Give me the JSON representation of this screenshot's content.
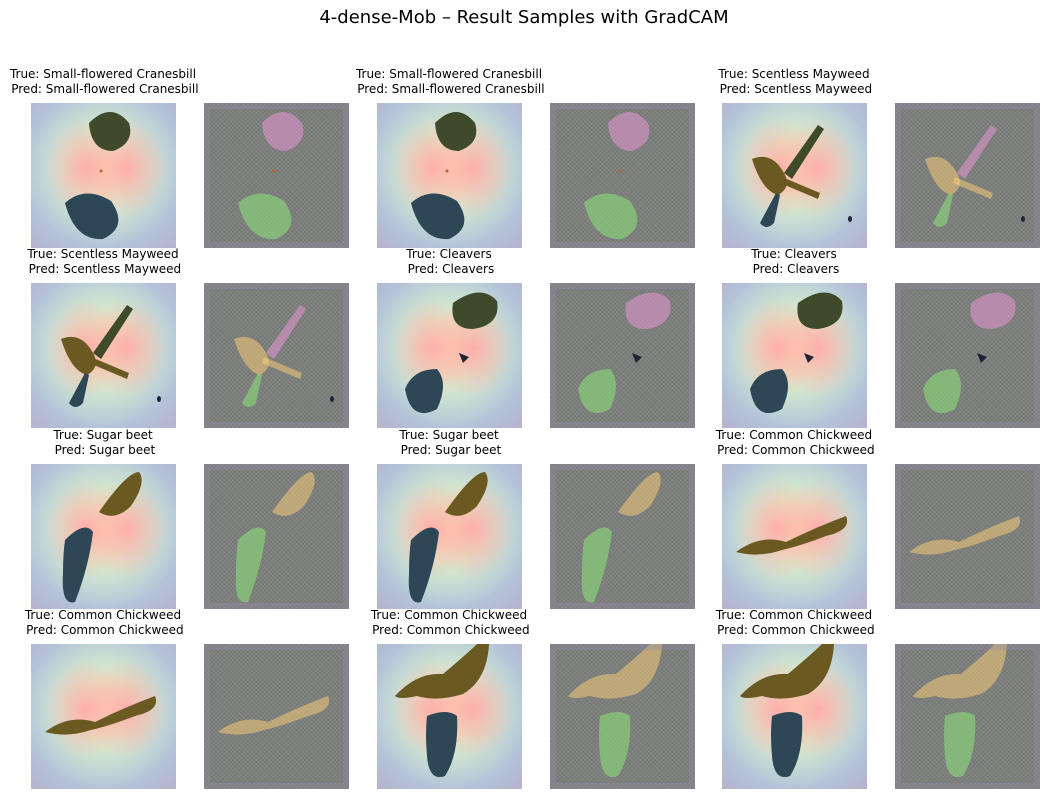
{
  "figure": {
    "title": "4-dense-Mob – Result Samples with GradCAM"
  },
  "samples": [
    {
      "true_label": "True: Small-flowered Cranesbill",
      "pred_label": " Pred: Small-flowered Cranesbill"
    },
    {
      "true_label": "True: Small-flowered Cranesbill",
      "pred_label": " Pred: Small-flowered Cranesbill"
    },
    {
      "true_label": "True: Scentless Mayweed",
      "pred_label": " Pred: Scentless Mayweed"
    },
    {
      "true_label": "True: Scentless Mayweed",
      "pred_label": " Pred: Scentless Mayweed"
    },
    {
      "true_label": "True: Cleavers",
      "pred_label": " Pred: Cleavers"
    },
    {
      "true_label": "True: Cleavers",
      "pred_label": " Pred: Cleavers"
    },
    {
      "true_label": "True: Sugar beet",
      "pred_label": " Pred: Sugar beet"
    },
    {
      "true_label": "True: Sugar beet",
      "pred_label": " Pred: Sugar beet"
    },
    {
      "true_label": "True: Common Chickweed",
      "pred_label": " Pred: Common Chickweed"
    },
    {
      "true_label": "True: Common Chickweed",
      "pred_label": " Pred: Common Chickweed"
    },
    {
      "true_label": "True: Common Chickweed",
      "pred_label": " Pred: Common Chickweed"
    },
    {
      "true_label": "True: Common Chickweed",
      "pred_label": " Pred: Common Chickweed"
    }
  ]
}
